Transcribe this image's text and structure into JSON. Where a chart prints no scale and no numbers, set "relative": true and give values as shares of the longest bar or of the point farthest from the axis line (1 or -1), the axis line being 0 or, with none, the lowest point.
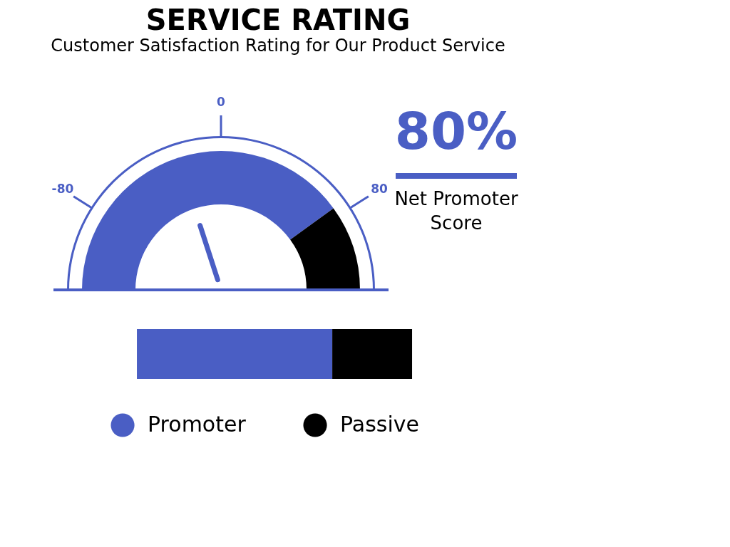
{
  "chart_data": [
    {
      "type": "donut",
      "title": "SERVICE RATING",
      "subtitle": "Customer Satisfaction Rating for Our Product Service",
      "categories": [
        "Promoter",
        "Passive"
      ],
      "values": [
        80,
        20
      ],
      "colors": [
        "#4a5ec4",
        "#000000"
      ],
      "needle": "Promoter",
      "annotations": [
        "-80",
        "0",
        "80",
        "80%",
        "Net Promoter Score"
      ],
      "legend": "bottom"
    },
    {
      "type": "bar",
      "stacked": true,
      "orientation": "horizontal",
      "relative": true,
      "categories": [
        null
      ],
      "series": [
        {
          "color": "#4a5ec4",
          "values": [
            0.71
          ]
        },
        {
          "color": "#000000",
          "values": [
            0.29
          ]
        }
      ]
    }
  ]
}
